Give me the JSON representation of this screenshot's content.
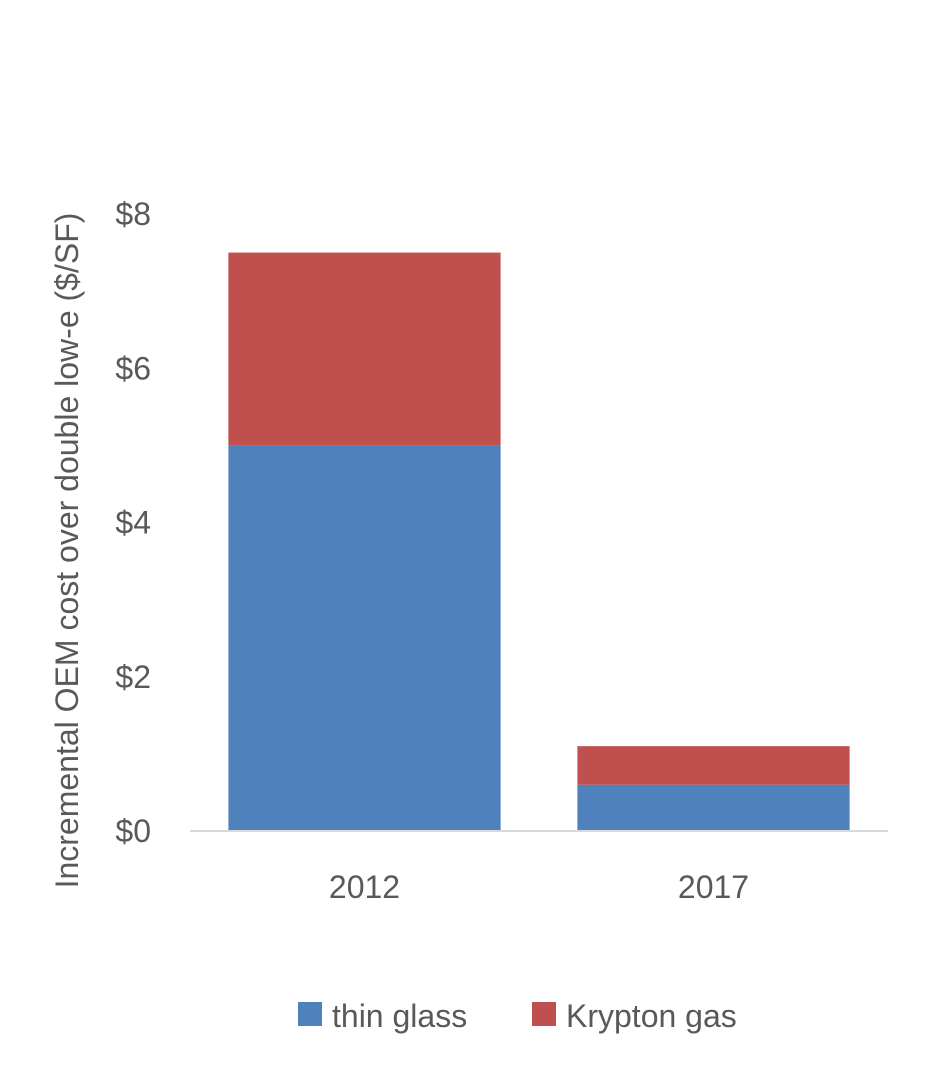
{
  "chart_data": {
    "type": "bar",
    "stacked": true,
    "categories": [
      "2012",
      "2017"
    ],
    "series": [
      {
        "name": "thin glass",
        "values": [
          5.0,
          0.6
        ],
        "color": "#4F81BD"
      },
      {
        "name": "Krypton gas",
        "values": [
          2.5,
          0.5
        ],
        "color": "#C0504D"
      }
    ],
    "ylabel": "Incremental OEM cost over double low-e ($/SF)",
    "ylim": [
      0,
      8
    ],
    "yticks": [
      {
        "value": 0,
        "label": "$0"
      },
      {
        "value": 2,
        "label": "$2"
      },
      {
        "value": 4,
        "label": "$4"
      },
      {
        "value": 6,
        "label": "$6"
      },
      {
        "value": 8,
        "label": "$8"
      }
    ],
    "grid": false,
    "legend_position": "bottom"
  },
  "colors": {
    "axis_line": "#D9D9D9",
    "text": "#595959"
  }
}
